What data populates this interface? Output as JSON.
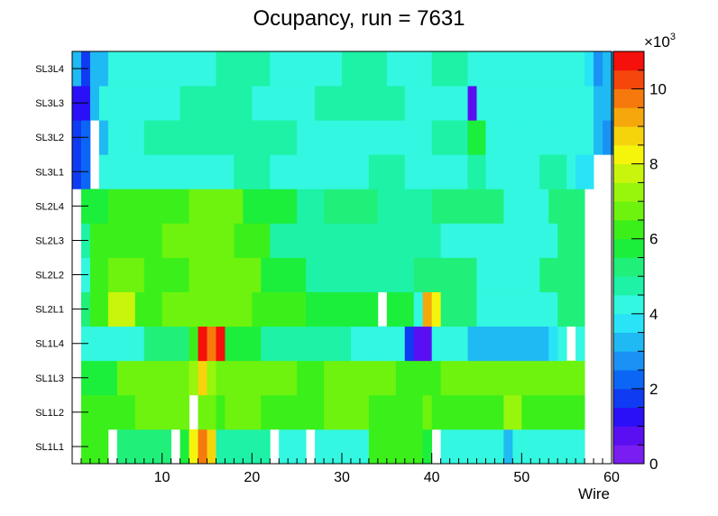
{
  "chart_data": {
    "type": "heatmap",
    "title": "Ocupancy, run = 7631",
    "xlabel": "Wire",
    "ylabel": "",
    "xlim": [
      0,
      60
    ],
    "x_ticks": [
      10,
      20,
      30,
      40,
      50,
      60
    ],
    "rows": [
      "SL1L1",
      "SL1L2",
      "SL1L3",
      "SL1L4",
      "SL2L1",
      "SL2L2",
      "SL2L3",
      "SL2L4",
      "SL3L1",
      "SL3L2",
      "SL3L3",
      "SL3L4"
    ],
    "colorbar": {
      "min": 0,
      "max": 11,
      "exponent_label": "×10",
      "exponent": "3",
      "ticks": [
        0,
        2,
        4,
        6,
        8,
        10
      ]
    },
    "segments": {
      "SL1L1": [
        [
          1,
          4,
          6.2
        ],
        [
          5,
          11,
          5.2
        ],
        [
          12,
          13,
          5.5
        ],
        [
          13,
          14,
          8.2
        ],
        [
          14,
          15,
          9.5
        ],
        [
          15,
          16,
          8.8
        ],
        [
          16,
          22,
          4.5
        ],
        [
          23,
          26,
          4.0
        ],
        [
          27,
          33,
          4.0
        ],
        [
          33,
          39,
          6.2
        ],
        [
          39,
          40,
          5.6
        ],
        [
          40,
          41,
          0
        ],
        [
          41,
          48,
          4.0
        ],
        [
          48,
          49,
          3.0
        ],
        [
          49,
          57,
          4.0
        ],
        [
          57,
          61,
          0
        ]
      ],
      "SL1L2": [
        [
          1,
          7,
          6.3
        ],
        [
          7,
          13,
          6.5
        ],
        [
          14,
          16,
          6.8
        ],
        [
          16,
          17,
          6.0
        ],
        [
          17,
          21,
          6.5
        ],
        [
          21,
          28,
          6.3
        ],
        [
          28,
          33,
          6.8
        ],
        [
          33,
          39,
          6.3
        ],
        [
          39,
          40,
          6.6
        ],
        [
          40,
          48,
          6.3
        ],
        [
          48,
          49,
          7.2
        ],
        [
          49,
          50,
          7.0
        ],
        [
          50,
          57,
          6.3
        ],
        [
          57,
          61,
          0
        ]
      ],
      "SL1L3": [
        [
          1,
          5,
          5.7
        ],
        [
          5,
          13,
          6.5
        ],
        [
          13,
          14,
          7.5
        ],
        [
          14,
          15,
          8.5
        ],
        [
          15,
          16,
          7.0
        ],
        [
          16,
          25,
          6.5
        ],
        [
          25,
          28,
          6.1
        ],
        [
          28,
          36,
          6.5
        ],
        [
          36,
          41,
          6.3
        ],
        [
          41,
          56,
          6.5
        ],
        [
          56,
          57,
          6.5
        ],
        [
          57,
          61,
          0
        ]
      ],
      "SL1L4": [
        [
          0,
          1,
          0
        ],
        [
          1,
          8,
          4.2
        ],
        [
          8,
          13,
          5.2
        ],
        [
          13,
          14,
          6.3
        ],
        [
          14,
          15,
          11.0
        ],
        [
          15,
          16,
          9.5
        ],
        [
          16,
          17,
          10.5
        ],
        [
          17,
          21,
          5.5
        ],
        [
          21,
          31,
          4.7
        ],
        [
          31,
          33,
          4.4
        ],
        [
          33,
          35,
          4.0
        ],
        [
          35,
          37,
          4.2
        ],
        [
          37,
          38,
          1.5
        ],
        [
          38,
          40,
          0.8
        ],
        [
          40,
          41,
          4.3
        ],
        [
          41,
          44,
          4.2
        ],
        [
          44,
          53,
          3.4
        ],
        [
          53,
          54,
          3.6
        ],
        [
          54,
          55,
          4.0
        ],
        [
          55,
          56,
          0
        ],
        [
          56,
          57,
          4.2
        ],
        [
          57,
          61,
          0
        ]
      ],
      "SL2L1": [
        [
          1,
          2,
          5.4
        ],
        [
          2,
          4,
          6.0
        ],
        [
          4,
          7,
          7.8
        ],
        [
          7,
          9,
          6.3
        ],
        [
          9,
          10,
          6.0
        ],
        [
          10,
          20,
          6.6
        ],
        [
          20,
          26,
          6.2
        ],
        [
          26,
          34,
          5.5
        ],
        [
          34,
          35,
          0
        ],
        [
          35,
          38,
          5.5
        ],
        [
          38,
          39,
          4.2
        ],
        [
          39,
          40,
          9.2
        ],
        [
          40,
          41,
          8.2
        ],
        [
          41,
          45,
          5.2
        ],
        [
          45,
          54,
          4.3
        ],
        [
          54,
          57,
          5.2
        ],
        [
          57,
          61,
          0
        ]
      ],
      "SL2L2": [
        [
          1,
          2,
          4.2
        ],
        [
          2,
          4,
          6.0
        ],
        [
          4,
          8,
          6.5
        ],
        [
          8,
          13,
          6.2
        ],
        [
          13,
          19,
          6.8
        ],
        [
          19,
          21,
          6.5
        ],
        [
          21,
          26,
          5.5
        ],
        [
          26,
          38,
          4.8
        ],
        [
          38,
          40,
          5.2
        ],
        [
          40,
          45,
          5.2
        ],
        [
          45,
          52,
          4.0
        ],
        [
          52,
          55,
          5.0
        ],
        [
          55,
          57,
          5.3
        ],
        [
          57,
          61,
          0
        ]
      ],
      "SL2L3": [
        [
          1,
          2,
          4.8
        ],
        [
          2,
          6,
          6.2
        ],
        [
          6,
          10,
          6.0
        ],
        [
          10,
          18,
          6.6
        ],
        [
          18,
          22,
          6.0
        ],
        [
          22,
          28,
          4.8
        ],
        [
          28,
          33,
          4.5
        ],
        [
          33,
          36,
          4.7
        ],
        [
          36,
          41,
          4.5
        ],
        [
          41,
          48,
          4.3
        ],
        [
          48,
          54,
          4.0
        ],
        [
          54,
          57,
          5.0
        ],
        [
          57,
          61,
          0
        ]
      ],
      "SL2L4": [
        [
          1,
          4,
          5.5
        ],
        [
          4,
          8,
          6.2
        ],
        [
          8,
          13,
          6.0
        ],
        [
          13,
          19,
          6.7
        ],
        [
          19,
          25,
          5.6
        ],
        [
          25,
          28,
          4.5
        ],
        [
          28,
          34,
          5.3
        ],
        [
          34,
          40,
          4.8
        ],
        [
          40,
          48,
          5.0
        ],
        [
          48,
          53,
          4.0
        ],
        [
          53,
          57,
          5.0
        ],
        [
          57,
          61,
          0
        ]
      ],
      "SL3L1": [
        [
          0,
          1,
          1.5
        ],
        [
          1,
          2,
          2.2
        ],
        [
          2,
          3,
          0
        ],
        [
          3,
          4,
          4.0
        ],
        [
          4,
          18,
          4.4
        ],
        [
          18,
          22,
          4.9
        ],
        [
          22,
          33,
          4.2
        ],
        [
          33,
          37,
          4.8
        ],
        [
          37,
          44,
          4.4
        ],
        [
          44,
          46,
          4.6
        ],
        [
          46,
          52,
          4.2
        ],
        [
          52,
          55,
          4.5
        ],
        [
          55,
          56,
          4.2
        ],
        [
          56,
          58,
          3.8
        ],
        [
          58,
          61,
          0
        ]
      ],
      "SL3L2": [
        [
          0,
          1,
          1.5
        ],
        [
          1,
          2,
          2.2
        ],
        [
          2,
          3,
          0
        ],
        [
          3,
          4,
          3.0
        ],
        [
          4,
          8,
          4.0
        ],
        [
          8,
          15,
          4.7
        ],
        [
          15,
          19,
          4.7
        ],
        [
          19,
          25,
          4.5
        ],
        [
          25,
          34,
          4.3
        ],
        [
          34,
          40,
          4.2
        ],
        [
          40,
          44,
          4.5
        ],
        [
          44,
          46,
          5.5
        ],
        [
          46,
          50,
          4.4
        ],
        [
          50,
          53,
          4.2
        ],
        [
          53,
          58,
          4.1
        ],
        [
          58,
          59,
          3.0
        ],
        [
          59,
          61,
          2.8
        ]
      ],
      "SL3L3": [
        [
          0,
          2,
          1.3
        ],
        [
          2,
          3,
          3.2
        ],
        [
          3,
          7,
          4.0
        ],
        [
          7,
          12,
          4.2
        ],
        [
          12,
          15,
          4.5
        ],
        [
          15,
          20,
          4.7
        ],
        [
          20,
          27,
          4.3
        ],
        [
          27,
          37,
          4.6
        ],
        [
          37,
          44,
          4.4
        ],
        [
          44,
          45,
          0.8
        ],
        [
          45,
          49,
          4.3
        ],
        [
          49,
          56,
          4.1
        ],
        [
          56,
          58,
          4.0
        ],
        [
          58,
          61,
          3.0
        ]
      ],
      "SL3L4": [
        [
          0,
          1,
          3.2
        ],
        [
          1,
          2,
          1.8
        ],
        [
          2,
          4,
          3.2
        ],
        [
          4,
          16,
          4.0
        ],
        [
          16,
          22,
          4.8
        ],
        [
          22,
          30,
          4.3
        ],
        [
          30,
          35,
          4.7
        ],
        [
          35,
          40,
          4.4
        ],
        [
          40,
          44,
          4.8
        ],
        [
          44,
          51,
          4.4
        ],
        [
          51,
          57,
          4.2
        ],
        [
          57,
          58,
          3.5
        ],
        [
          58,
          59,
          2.5
        ],
        [
          59,
          61,
          3.0
        ]
      ]
    }
  }
}
